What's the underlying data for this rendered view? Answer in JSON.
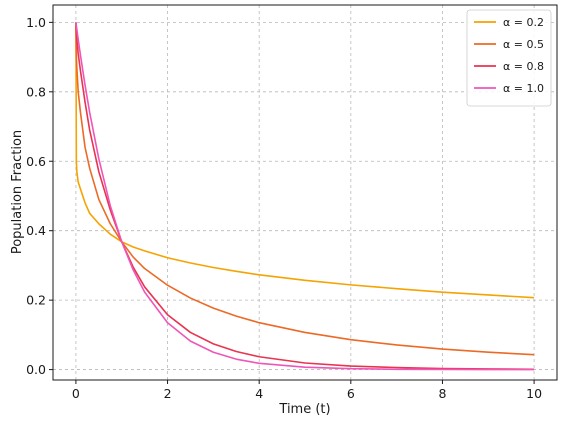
{
  "chart_data": {
    "type": "line",
    "title": "",
    "xlabel": "Time (t)",
    "ylabel": "Population Fraction",
    "xlim": [
      -0.5,
      10.5
    ],
    "ylim": [
      -0.03,
      1.05
    ],
    "xticks": [
      0,
      2,
      4,
      6,
      8,
      10
    ],
    "yticks": [
      0.0,
      0.2,
      0.4,
      0.6,
      0.8,
      1.0
    ],
    "xtick_labels": [
      "0",
      "2",
      "4",
      "6",
      "8",
      "10"
    ],
    "ytick_labels": [
      "0.0",
      "0.2",
      "0.4",
      "0.6",
      "0.8",
      "1.0"
    ],
    "grid": true,
    "legend_position": "top-right",
    "x": [
      0,
      0.01,
      0.02,
      0.05,
      0.1,
      0.2,
      0.3,
      0.5,
      0.75,
      1,
      1.25,
      1.5,
      2,
      2.5,
      3,
      3.5,
      4,
      5,
      6,
      7,
      8,
      9,
      10
    ],
    "series": [
      {
        "name": "α = 0.2",
        "color": "#f5a300",
        "values": [
          1.0,
          0.6,
          0.57,
          0.54,
          0.52,
          0.48,
          0.45,
          0.42,
          0.39,
          0.368,
          0.353,
          0.342,
          0.322,
          0.307,
          0.294,
          0.283,
          0.273,
          0.257,
          0.244,
          0.233,
          0.223,
          0.215,
          0.207
        ]
      },
      {
        "name": "α = 0.5",
        "color": "#ec6a25",
        "values": [
          1.0,
          0.9,
          0.87,
          0.8,
          0.74,
          0.64,
          0.58,
          0.49,
          0.42,
          0.368,
          0.324,
          0.291,
          0.243,
          0.206,
          0.177,
          0.154,
          0.135,
          0.107,
          0.086,
          0.071,
          0.059,
          0.05,
          0.043
        ]
      },
      {
        "name": "α = 0.8",
        "color": "#e8344e",
        "values": [
          1.0,
          0.97,
          0.95,
          0.91,
          0.86,
          0.77,
          0.69,
          0.57,
          0.46,
          0.368,
          0.295,
          0.238,
          0.158,
          0.107,
          0.074,
          0.052,
          0.037,
          0.019,
          0.01,
          0.006,
          0.003,
          0.002,
          0.001
        ]
      },
      {
        "name": "α = 1.0",
        "color": "#ef56b9",
        "values": [
          1.0,
          0.99,
          0.98,
          0.951,
          0.905,
          0.819,
          0.741,
          0.607,
          0.472,
          0.368,
          0.287,
          0.223,
          0.135,
          0.082,
          0.05,
          0.03,
          0.018,
          0.007,
          0.0025,
          0.0009,
          0.0003,
          0.0001,
          5e-05
        ]
      }
    ]
  }
}
